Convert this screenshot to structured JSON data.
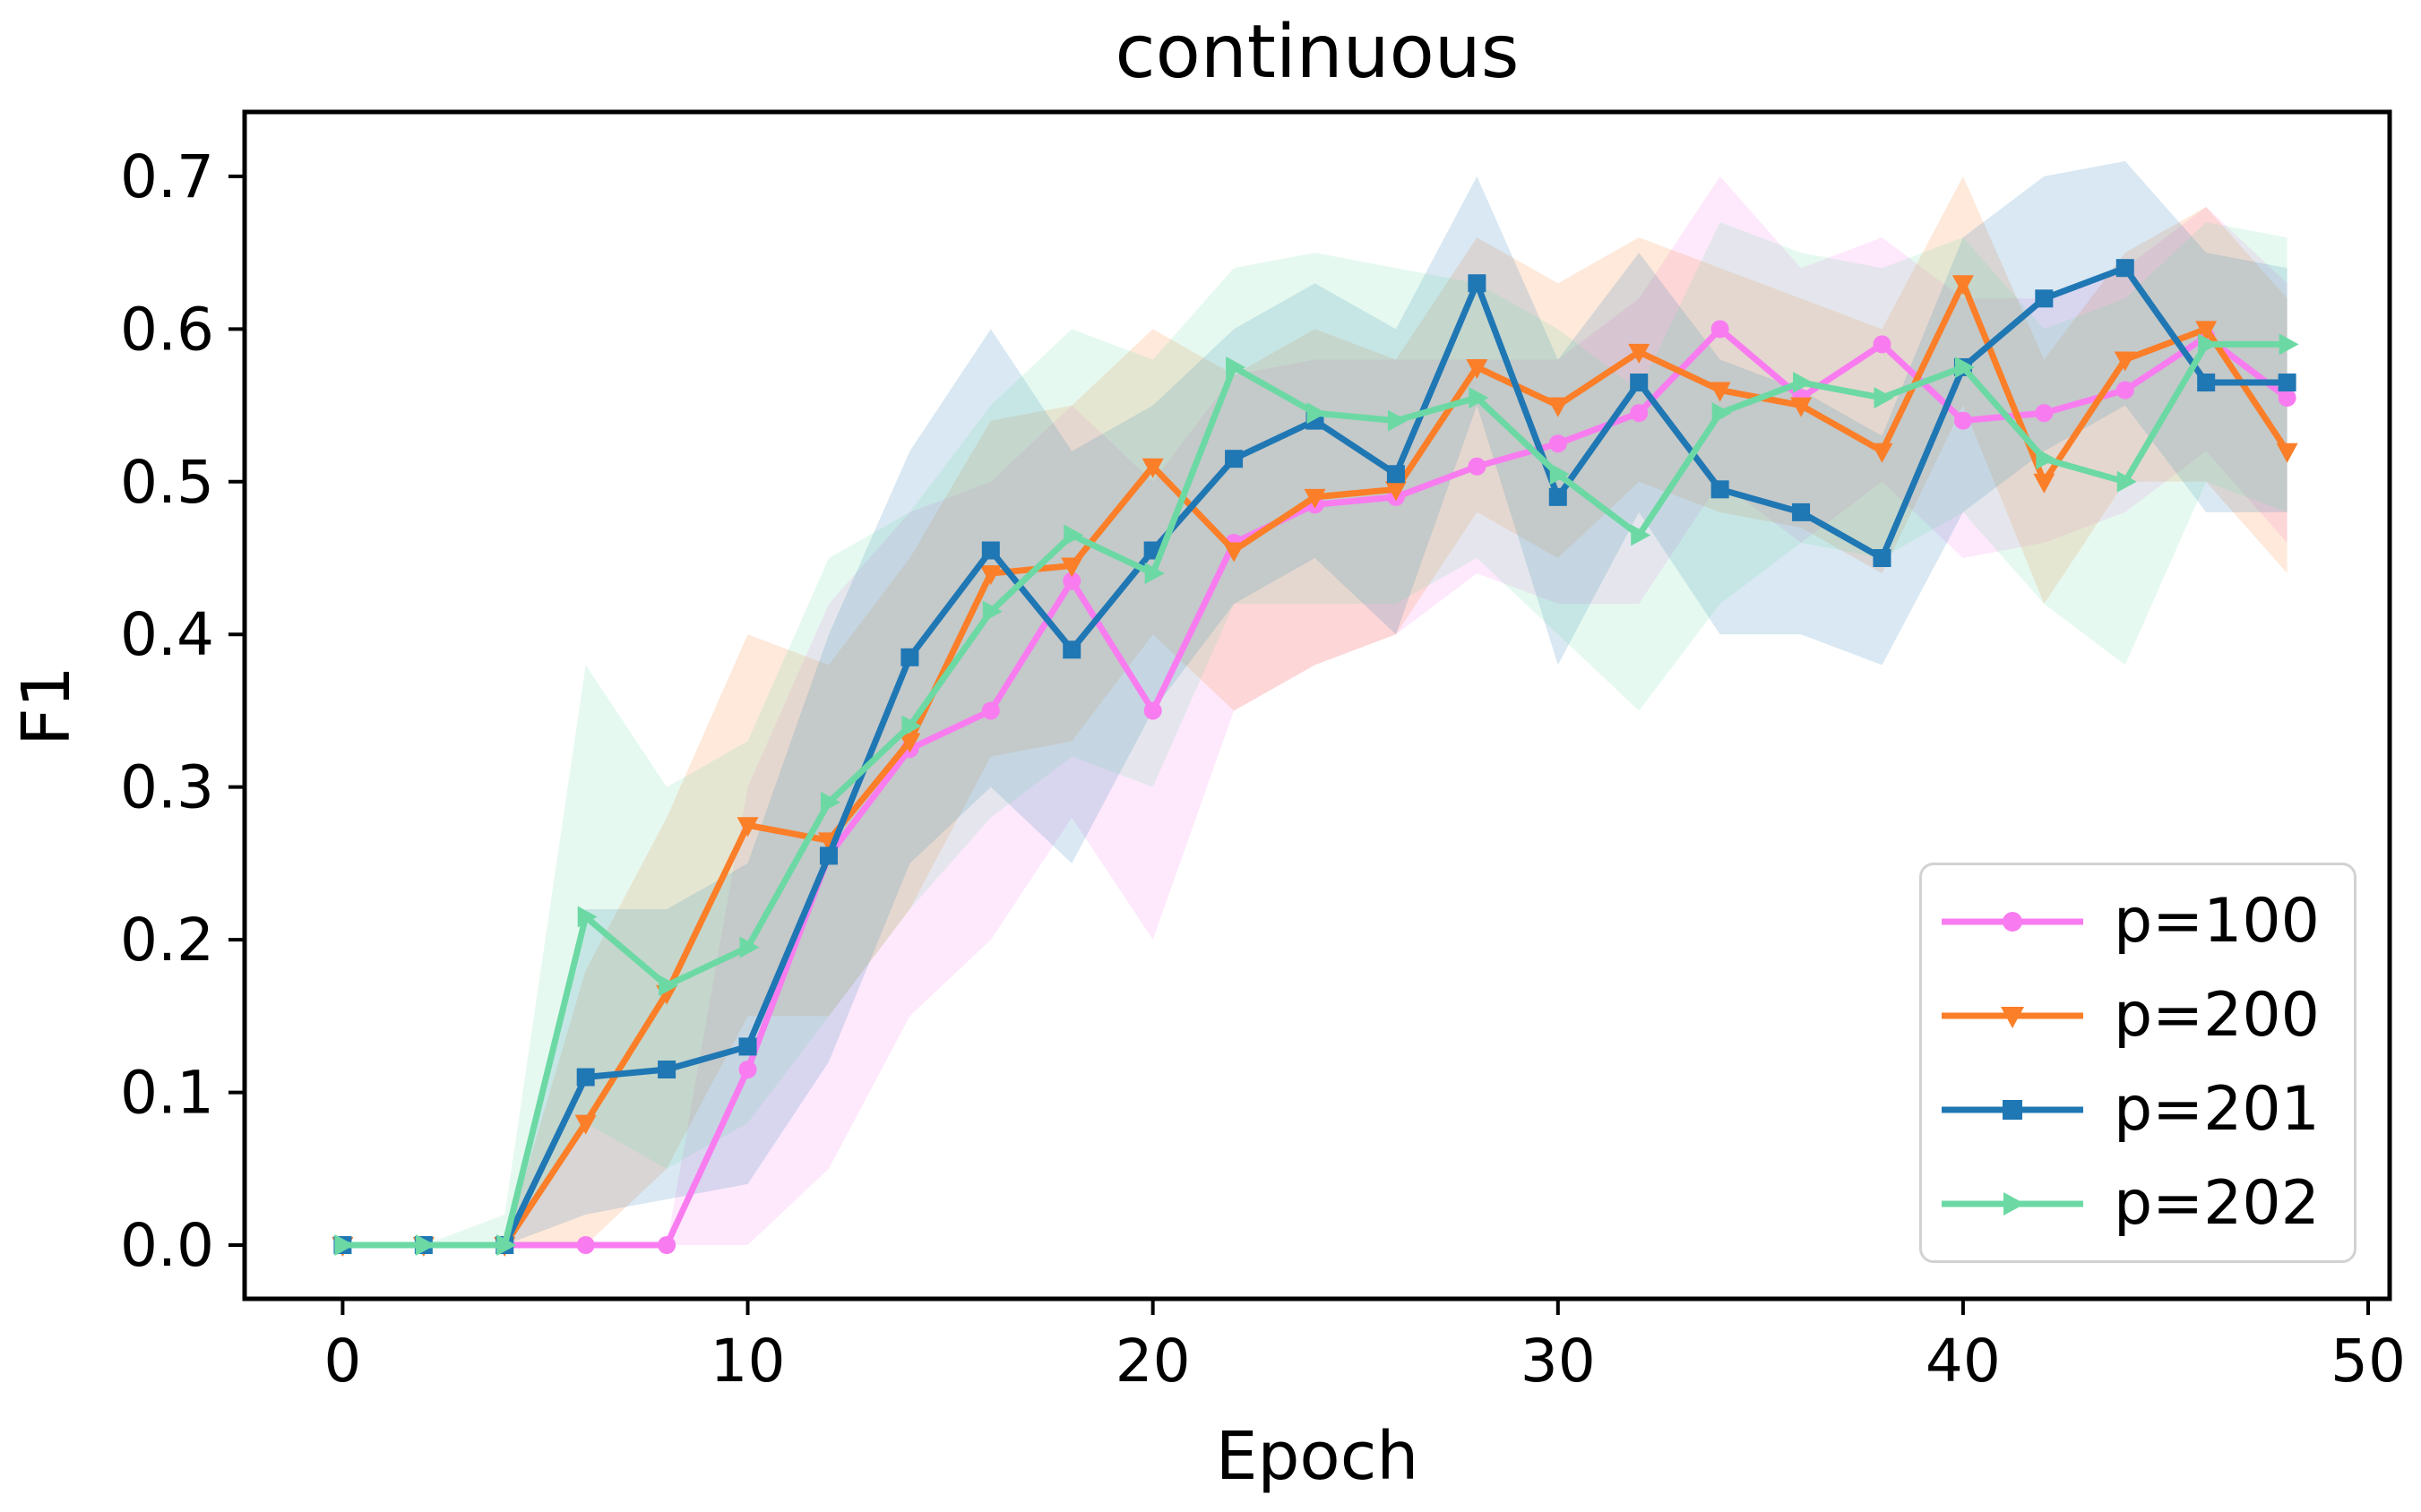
{
  "chart_data": {
    "type": "line",
    "title": "continuous",
    "xlabel": "Epoch",
    "ylabel": "F1",
    "xlim": [
      -2.42,
      50.53
    ],
    "ylim": [
      -0.0352,
      0.7422
    ],
    "xticks": [
      0,
      10,
      20,
      30,
      40,
      50
    ],
    "xtick_labels": [
      "0",
      "10",
      "20",
      "30",
      "40",
      "50"
    ],
    "yticks": [
      0.0,
      0.1,
      0.2,
      0.3,
      0.4,
      0.5,
      0.6,
      0.7
    ],
    "ytick_labels": [
      "0.0",
      "0.1",
      "0.2",
      "0.3",
      "0.4",
      "0.5",
      "0.6",
      "0.7"
    ],
    "grid": false,
    "legend_position": "lower right",
    "x": [
      0,
      2,
      4,
      6,
      8,
      10,
      12,
      14,
      16,
      18,
      20,
      22,
      24,
      26,
      28,
      30,
      32,
      34,
      36,
      38,
      40,
      42,
      44,
      46,
      48
    ],
    "series": [
      {
        "name": "p=100",
        "color": "#F87CF0",
        "marker": "circle",
        "values": [
          0,
          0,
          0,
          0,
          0,
          0.115,
          0.255,
          0.325,
          0.35,
          0.435,
          0.35,
          0.46,
          0.485,
          0.49,
          0.51,
          0.525,
          0.545,
          0.6,
          0.555,
          0.59,
          0.54,
          0.545,
          0.56,
          0.595,
          0.555
        ],
        "band_lo": [
          0,
          0,
          0,
          0,
          0,
          0.0,
          0.05,
          0.15,
          0.2,
          0.28,
          0.2,
          0.35,
          0.38,
          0.4,
          0.44,
          0.42,
          0.42,
          0.5,
          0.46,
          0.5,
          0.45,
          0.46,
          0.48,
          0.52,
          0.46
        ],
        "band_hi": [
          0,
          0,
          0,
          0,
          0,
          0.3,
          0.42,
          0.48,
          0.5,
          0.55,
          0.5,
          0.57,
          0.58,
          0.58,
          0.58,
          0.58,
          0.62,
          0.7,
          0.64,
          0.66,
          0.62,
          0.62,
          0.64,
          0.68,
          0.63
        ]
      },
      {
        "name": "p=200",
        "color": "#FB7E28",
        "marker": "triangle-down",
        "values": [
          0,
          0,
          0,
          0.08,
          0.165,
          0.275,
          0.265,
          0.33,
          0.44,
          0.445,
          0.51,
          0.455,
          0.49,
          0.495,
          0.575,
          0.55,
          0.585,
          0.56,
          0.55,
          0.52,
          0.63,
          0.5,
          0.58,
          0.6,
          0.52
        ],
        "band_lo": [
          0,
          0,
          0,
          0,
          0.05,
          0.15,
          0.15,
          0.22,
          0.32,
          0.33,
          0.4,
          0.35,
          0.38,
          0.4,
          0.48,
          0.45,
          0.5,
          0.48,
          0.47,
          0.44,
          0.55,
          0.42,
          0.5,
          0.5,
          0.44
        ],
        "band_hi": [
          0,
          0,
          0,
          0.18,
          0.28,
          0.4,
          0.38,
          0.45,
          0.54,
          0.55,
          0.6,
          0.57,
          0.6,
          0.58,
          0.66,
          0.63,
          0.66,
          0.64,
          0.62,
          0.6,
          0.7,
          0.58,
          0.65,
          0.68,
          0.62
        ]
      },
      {
        "name": "p=201",
        "color": "#1F77B4",
        "marker": "square",
        "values": [
          0,
          0,
          0,
          0.11,
          0.115,
          0.13,
          0.255,
          0.385,
          0.455,
          0.39,
          0.455,
          0.515,
          0.54,
          0.505,
          0.63,
          0.49,
          0.565,
          0.495,
          0.48,
          0.45,
          0.575,
          0.62,
          0.64,
          0.565,
          0.565
        ],
        "band_lo": [
          0,
          0,
          0,
          0.02,
          0.03,
          0.04,
          0.12,
          0.25,
          0.3,
          0.25,
          0.35,
          0.42,
          0.45,
          0.4,
          0.55,
          0.38,
          0.48,
          0.4,
          0.4,
          0.38,
          0.48,
          0.52,
          0.55,
          0.48,
          0.48
        ],
        "band_hi": [
          0,
          0,
          0,
          0.22,
          0.22,
          0.25,
          0.4,
          0.52,
          0.6,
          0.52,
          0.55,
          0.6,
          0.63,
          0.6,
          0.7,
          0.58,
          0.65,
          0.58,
          0.56,
          0.53,
          0.66,
          0.7,
          0.71,
          0.65,
          0.64
        ]
      },
      {
        "name": "p=202",
        "color": "#6CD9A4",
        "marker": "triangle-right",
        "values": [
          0,
          0,
          0,
          0.215,
          0.17,
          0.195,
          0.29,
          0.34,
          0.415,
          0.465,
          0.44,
          0.575,
          0.545,
          0.54,
          0.555,
          0.505,
          0.465,
          0.545,
          0.565,
          0.555,
          0.575,
          0.515,
          0.5,
          0.59,
          0.59
        ],
        "band_lo": [
          0,
          0,
          0,
          0.08,
          0.05,
          0.08,
          0.15,
          0.22,
          0.28,
          0.32,
          0.3,
          0.42,
          0.42,
          0.42,
          0.45,
          0.4,
          0.35,
          0.42,
          0.46,
          0.45,
          0.48,
          0.42,
          0.38,
          0.5,
          0.48
        ],
        "band_hi": [
          0,
          0,
          0.02,
          0.38,
          0.3,
          0.33,
          0.45,
          0.48,
          0.55,
          0.6,
          0.58,
          0.64,
          0.65,
          0.64,
          0.63,
          0.6,
          0.56,
          0.67,
          0.65,
          0.64,
          0.66,
          0.6,
          0.62,
          0.67,
          0.66
        ]
      }
    ],
    "band_opacity": 0.17,
    "axis_color": "#000000",
    "background_color": "#ffffff"
  }
}
